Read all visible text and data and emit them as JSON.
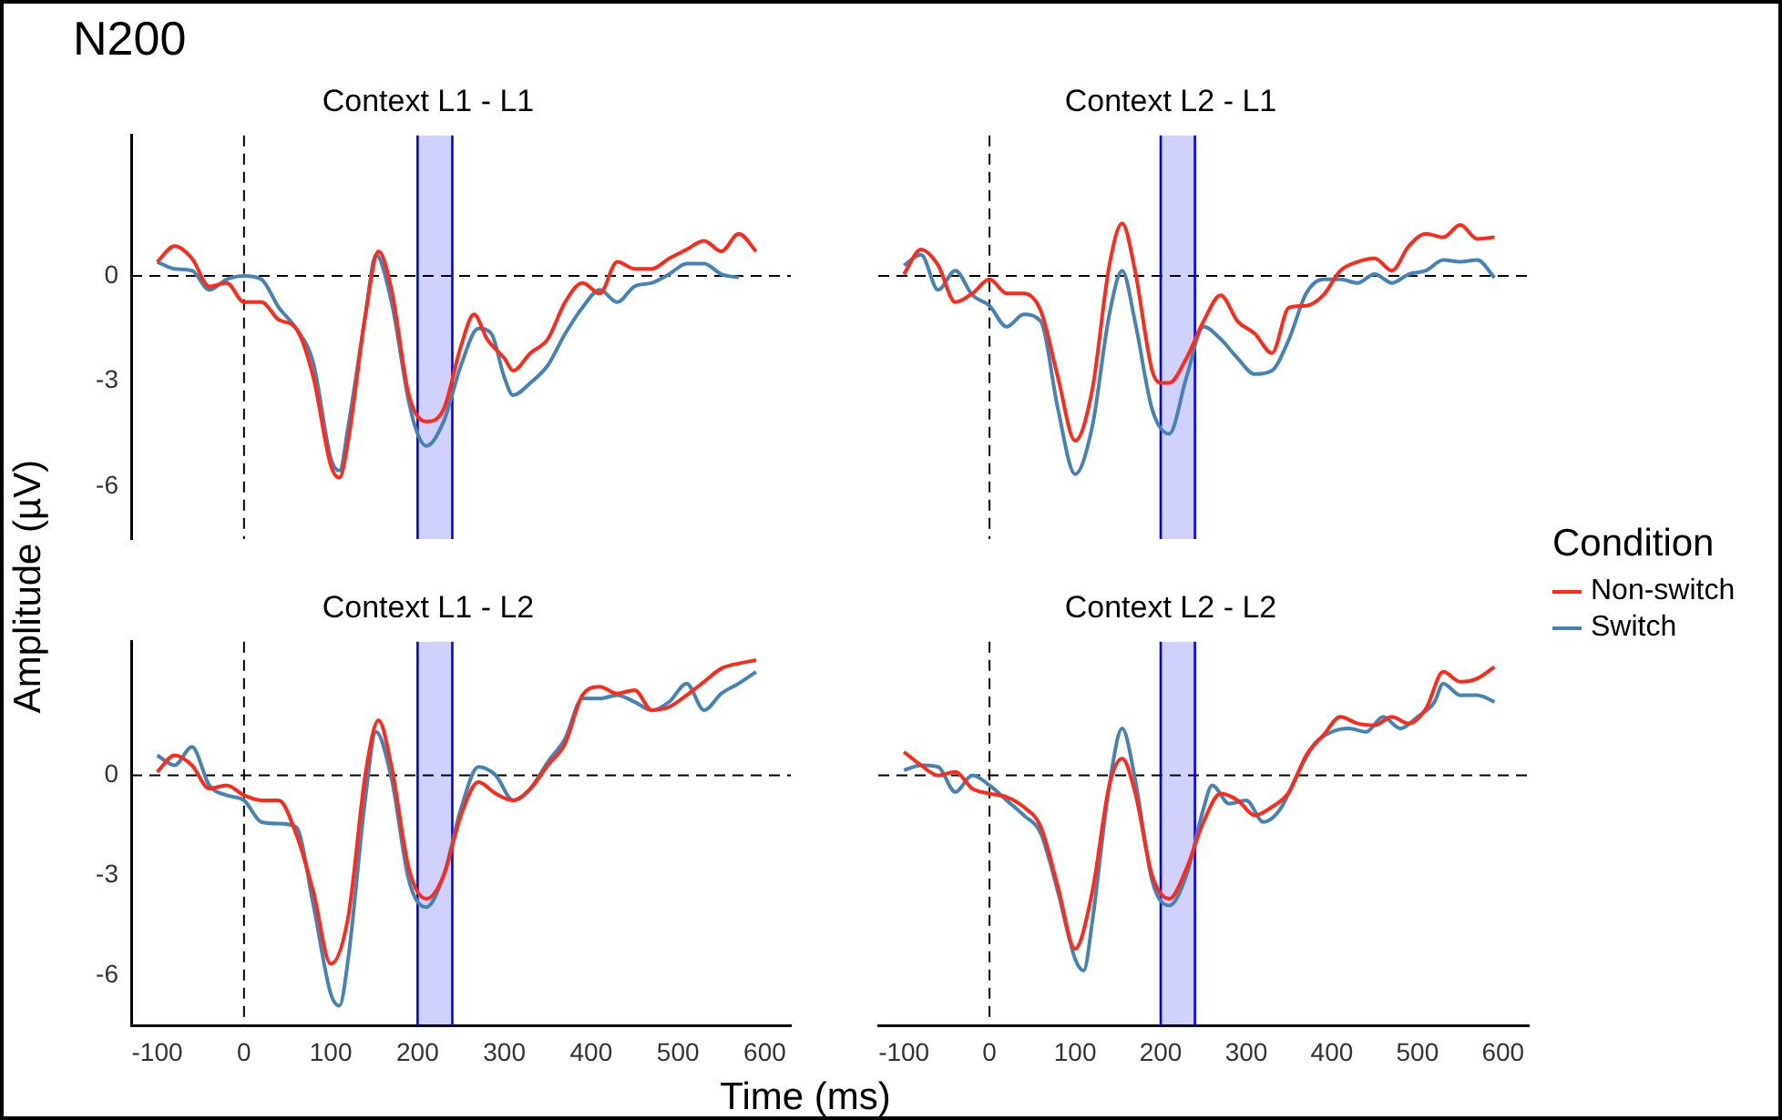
{
  "chart_data": [
    {
      "type": "line",
      "title": "Context L1 - L1",
      "ylabel": "Amplitude (µV)",
      "legend_title": "Condition",
      "legend": "right",
      "annotations": [
        "N200"
      ],
      "xlim": [
        -130,
        630
      ],
      "ylim": [
        -7.5,
        4
      ],
      "xticks": [
        -100,
        0,
        100,
        200,
        300,
        400,
        500,
        600
      ],
      "yticks": [
        -6,
        -3,
        0
      ],
      "tick_labels": "y",
      "line_style": "solid",
      "marker": "none",
      "grid": false,
      "ref_lines": [
        {
          "axis": "x",
          "value": 0,
          "line_style": "dashed",
          "color": "#000000"
        },
        {
          "axis": "y",
          "value": 0,
          "line_style": "dashed",
          "color": "#000000"
        },
        {
          "axis": "x",
          "value": 200,
          "line_style": "solid",
          "color": "#0000ff"
        },
        {
          "axis": "x",
          "value": 240,
          "line_style": "solid",
          "color": "#0000ff"
        }
      ],
      "bands": [
        {
          "axis": "x",
          "from": 200,
          "to": 240,
          "color": "#0000ff"
        }
      ],
      "series": [
        {
          "name": "Non-switch",
          "color": "#ff2a1a",
          "x": [
            -100,
            -80,
            -60,
            -40,
            -20,
            0,
            20,
            40,
            60,
            80,
            100,
            110,
            120,
            140,
            155,
            170,
            190,
            210,
            230,
            250,
            265,
            280,
            300,
            310,
            330,
            350,
            370,
            390,
            410,
            430,
            450,
            470,
            490,
            510,
            530,
            550,
            570,
            590
          ],
          "values": [
            0.4,
            0.85,
            0.5,
            -0.3,
            -0.2,
            -0.75,
            -0.75,
            -1.25,
            -1.5,
            -2.9,
            -5.4,
            -5.75,
            -4.7,
            -1.1,
            0.7,
            -0.4,
            -3.4,
            -4.15,
            -3.8,
            -2.0,
            -1.1,
            -1.8,
            -2.35,
            -2.7,
            -2.2,
            -1.8,
            -0.75,
            -0.2,
            -0.5,
            0.4,
            0.2,
            0.2,
            0.5,
            0.75,
            1.0,
            0.7,
            1.2,
            0.7
          ]
        },
        {
          "name": "Switch",
          "color": "#4682b4",
          "x": [
            -100,
            -80,
            -60,
            -40,
            -20,
            0,
            20,
            40,
            60,
            80,
            100,
            110,
            120,
            140,
            152,
            170,
            190,
            200,
            210,
            230,
            250,
            270,
            285,
            300,
            310,
            330,
            350,
            370,
            390,
            410,
            430,
            450,
            470,
            490,
            510,
            530,
            550,
            570
          ],
          "values": [
            0.4,
            0.2,
            0.15,
            -0.4,
            -0.1,
            0,
            -0.1,
            -0.9,
            -1.5,
            -2.5,
            -5.2,
            -5.55,
            -4.3,
            -1.1,
            0.6,
            -0.75,
            -3.6,
            -4.5,
            -4.85,
            -4.15,
            -2.55,
            -1.5,
            -1.65,
            -2.9,
            -3.4,
            -3.05,
            -2.55,
            -1.65,
            -0.9,
            -0.4,
            -0.75,
            -0.3,
            -0.2,
            0.05,
            0.35,
            0.35,
            0.05,
            -0.05
          ]
        }
      ]
    },
    {
      "type": "line",
      "title": "Context L2 - L1",
      "xlim": [
        -130,
        630
      ],
      "ylim": [
        -7.5,
        4
      ],
      "xticks": [
        -100,
        0,
        100,
        200,
        300,
        400,
        500,
        600
      ],
      "yticks": [
        -6,
        -3,
        0
      ],
      "tick_labels": false,
      "line_style": "solid",
      "marker": "none",
      "grid": false,
      "ref_lines": [
        {
          "axis": "x",
          "value": 0,
          "line_style": "dashed",
          "color": "#000000"
        },
        {
          "axis": "y",
          "value": 0,
          "line_style": "dashed",
          "color": "#000000"
        },
        {
          "axis": "x",
          "value": 200,
          "line_style": "solid",
          "color": "#0000ff"
        },
        {
          "axis": "x",
          "value": 240,
          "line_style": "solid",
          "color": "#0000ff"
        }
      ],
      "bands": [
        {
          "axis": "x",
          "from": 200,
          "to": 240,
          "color": "#0000ff"
        }
      ],
      "series": [
        {
          "color": "#ff2a1a",
          "x": [
            -100,
            -80,
            -60,
            -40,
            -20,
            0,
            20,
            40,
            60,
            80,
            100,
            120,
            140,
            155,
            170,
            190,
            200,
            210,
            230,
            250,
            270,
            290,
            310,
            330,
            350,
            370,
            390,
            410,
            430,
            450,
            470,
            490,
            510,
            530,
            550,
            570,
            590
          ],
          "values": [
            0.05,
            0.75,
            0.3,
            -0.75,
            -0.5,
            -0.1,
            -0.5,
            -0.5,
            -1.0,
            -2.9,
            -4.7,
            -3.25,
            0.3,
            1.5,
            0.15,
            -2.7,
            -3.05,
            -3.05,
            -2.35,
            -1.3,
            -0.55,
            -1.3,
            -1.65,
            -2.2,
            -0.9,
            -0.85,
            -0.55,
            0.15,
            0.4,
            0.5,
            0.15,
            0.85,
            1.2,
            1.1,
            1.45,
            1.05,
            1.1
          ]
        },
        {
          "color": "#4682b4",
          "x": [
            -100,
            -80,
            -60,
            -40,
            -20,
            0,
            20,
            40,
            60,
            80,
            100,
            120,
            140,
            155,
            170,
            190,
            210,
            230,
            250,
            270,
            290,
            310,
            330,
            350,
            370,
            390,
            410,
            430,
            450,
            470,
            490,
            510,
            530,
            550,
            570,
            590
          ],
          "values": [
            0.3,
            0.6,
            -0.4,
            0.15,
            -0.55,
            -0.85,
            -1.45,
            -1.1,
            -1.3,
            -3.8,
            -5.65,
            -4.3,
            -1.1,
            0.15,
            -1.3,
            -3.8,
            -4.5,
            -2.9,
            -1.45,
            -1.8,
            -2.35,
            -2.8,
            -2.7,
            -1.8,
            -0.5,
            -0.1,
            -0.1,
            -0.2,
            0.05,
            -0.2,
            0.05,
            0.15,
            0.45,
            0.4,
            0.45,
            -0.05
          ]
        }
      ]
    },
    {
      "type": "line",
      "title": "Context L1 - L2",
      "xlabel": "Time (ms)",
      "xlim": [
        -130,
        630
      ],
      "ylim": [
        -7.5,
        4
      ],
      "xticks": [
        -100,
        0,
        100,
        200,
        300,
        400,
        500,
        600
      ],
      "yticks": [
        -6,
        -3,
        0
      ],
      "line_style": "solid",
      "marker": "none",
      "grid": false,
      "ref_lines": [
        {
          "axis": "x",
          "value": 0,
          "line_style": "dashed",
          "color": "#000000"
        },
        {
          "axis": "y",
          "value": 0,
          "line_style": "dashed",
          "color": "#000000"
        },
        {
          "axis": "x",
          "value": 200,
          "line_style": "solid",
          "color": "#0000ff"
        },
        {
          "axis": "x",
          "value": 240,
          "line_style": "solid",
          "color": "#0000ff"
        }
      ],
      "bands": [
        {
          "axis": "x",
          "from": 200,
          "to": 240,
          "color": "#0000ff"
        }
      ],
      "series": [
        {
          "color": "#ff2a1a",
          "x": [
            -100,
            -80,
            -60,
            -40,
            -20,
            0,
            20,
            40,
            60,
            80,
            100,
            120,
            140,
            155,
            170,
            190,
            210,
            230,
            250,
            270,
            290,
            310,
            330,
            350,
            370,
            390,
            410,
            430,
            450,
            470,
            490,
            510,
            530,
            550,
            570,
            590
          ],
          "values": [
            0.1,
            0.6,
            0.3,
            -0.4,
            -0.3,
            -0.6,
            -0.75,
            -0.75,
            -1.75,
            -3.5,
            -5.65,
            -4.25,
            0.05,
            1.65,
            0.25,
            -2.8,
            -3.7,
            -3.0,
            -1.2,
            -0.2,
            -0.55,
            -0.75,
            -0.4,
            0.3,
            0.95,
            2.4,
            2.65,
            2.45,
            2.55,
            1.95,
            2.05,
            2.4,
            2.8,
            3.2,
            3.35,
            3.45
          ]
        },
        {
          "color": "#4682b4",
          "x": [
            -100,
            -80,
            -60,
            -40,
            -20,
            0,
            20,
            40,
            60,
            80,
            100,
            110,
            120,
            140,
            152,
            170,
            190,
            210,
            230,
            250,
            270,
            290,
            310,
            330,
            350,
            370,
            390,
            410,
            430,
            450,
            470,
            490,
            510,
            530,
            550,
            570,
            590
          ],
          "values": [
            0.6,
            0.3,
            0.85,
            -0.3,
            -0.6,
            -0.75,
            -1.4,
            -1.45,
            -1.55,
            -3.9,
            -6.55,
            -6.9,
            -5.5,
            -0.65,
            1.3,
            -0.1,
            -3.15,
            -3.95,
            -3.0,
            -1.0,
            0.25,
            0,
            -0.75,
            -0.4,
            0.4,
            1.1,
            2.3,
            2.3,
            2.4,
            2.2,
            1.95,
            2.2,
            2.75,
            1.95,
            2.45,
            2.75,
            3.1
          ]
        }
      ]
    },
    {
      "type": "line",
      "title": "Context L2 - L2",
      "xlim": [
        -130,
        630
      ],
      "ylim": [
        -7.5,
        4
      ],
      "xticks": [
        -100,
        0,
        100,
        200,
        300,
        400,
        500,
        600
      ],
      "yticks": [
        -6,
        -3,
        0
      ],
      "tick_labels": "x",
      "line_style": "solid",
      "marker": "none",
      "grid": false,
      "ref_lines": [
        {
          "axis": "x",
          "value": 0,
          "line_style": "dashed",
          "color": "#000000"
        },
        {
          "axis": "y",
          "value": 0,
          "line_style": "dashed",
          "color": "#000000"
        },
        {
          "axis": "x",
          "value": 200,
          "line_style": "solid",
          "color": "#0000ff"
        },
        {
          "axis": "x",
          "value": 240,
          "line_style": "solid",
          "color": "#0000ff"
        }
      ],
      "bands": [
        {
          "axis": "x",
          "from": 200,
          "to": 240,
          "color": "#0000ff"
        }
      ],
      "series": [
        {
          "color": "#ff2a1a",
          "x": [
            -100,
            -80,
            -60,
            -40,
            -20,
            0,
            20,
            40,
            60,
            80,
            100,
            120,
            140,
            155,
            170,
            190,
            210,
            230,
            250,
            270,
            290,
            310,
            330,
            350,
            370,
            390,
            410,
            430,
            450,
            470,
            490,
            510,
            530,
            550,
            570,
            590
          ],
          "values": [
            0.7,
            0.3,
            0,
            0.1,
            -0.4,
            -0.55,
            -0.65,
            -0.95,
            -1.55,
            -3.35,
            -5.2,
            -3.5,
            -0.3,
            0.5,
            -0.5,
            -3.0,
            -3.7,
            -2.8,
            -1.4,
            -0.55,
            -0.75,
            -1.2,
            -0.95,
            -0.5,
            0.6,
            1.2,
            1.75,
            1.55,
            1.5,
            1.75,
            1.55,
            2.0,
            3.1,
            2.8,
            2.9,
            3.25
          ]
        },
        {
          "color": "#4682b4",
          "x": [
            -100,
            -80,
            -60,
            -40,
            -20,
            0,
            20,
            40,
            60,
            80,
            100,
            110,
            120,
            140,
            155,
            170,
            190,
            210,
            230,
            250,
            260,
            280,
            300,
            320,
            340,
            360,
            380,
            400,
            420,
            440,
            460,
            480,
            500,
            520,
            530,
            550,
            570,
            590
          ],
          "values": [
            0.15,
            0.3,
            0.25,
            -0.5,
            0,
            -0.3,
            -0.75,
            -1.2,
            -1.75,
            -3.5,
            -5.5,
            -5.85,
            -4.4,
            -0.3,
            1.4,
            -0.1,
            -3.15,
            -3.9,
            -3.0,
            -1.0,
            -0.3,
            -0.85,
            -0.75,
            -1.4,
            -1.0,
            0.05,
            0.95,
            1.3,
            1.4,
            1.3,
            1.75,
            1.4,
            1.75,
            2.2,
            2.75,
            2.4,
            2.4,
            2.2
          ]
        }
      ]
    }
  ]
}
